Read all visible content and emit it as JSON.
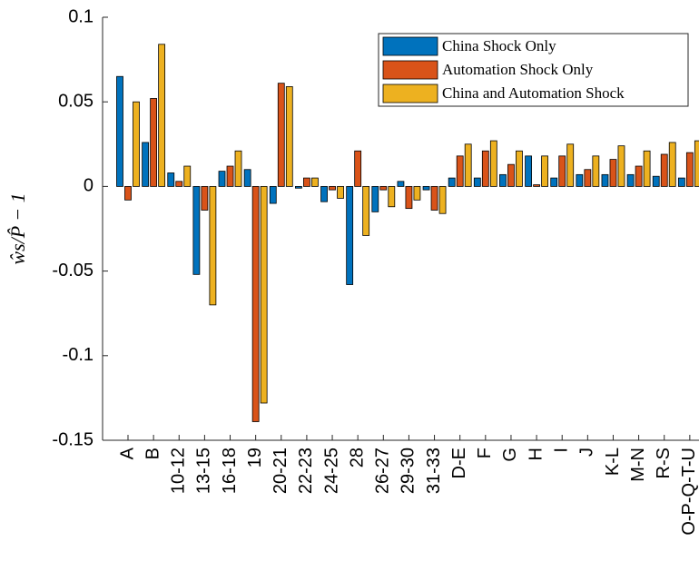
{
  "chart_data": {
    "type": "bar",
    "y_label": "ŵs/P̂ − 1",
    "categories": [
      "A",
      "B",
      "10-12",
      "13-15",
      "16-18",
      "19",
      "20-21",
      "22-23",
      "24-25",
      "28",
      "26-27",
      "29-30",
      "31-33",
      "D-E",
      "F",
      "G",
      "H",
      "I",
      "J",
      "K-L",
      "M-N",
      "R-S",
      "O-P-Q-T-U"
    ],
    "series": [
      {
        "name": "China Shock Only",
        "color": "#0072BD",
        "values": [
          0.065,
          0.026,
          0.008,
          -0.052,
          0.009,
          0.01,
          -0.01,
          -0.001,
          -0.009,
          -0.058,
          -0.015,
          0.003,
          -0.002,
          0.005,
          0.005,
          0.007,
          0.018,
          0.005,
          0.007,
          0.007,
          0.007,
          0.006,
          0.005
        ]
      },
      {
        "name": "Automation Shock Only",
        "color": "#D95319",
        "values": [
          -0.008,
          0.052,
          0.003,
          -0.014,
          0.012,
          -0.139,
          0.061,
          0.005,
          -0.002,
          0.021,
          -0.002,
          -0.013,
          -0.014,
          0.018,
          0.021,
          0.013,
          0.001,
          0.018,
          0.01,
          0.016,
          0.012,
          0.019,
          0.02
        ]
      },
      {
        "name": "China and Automation Shock",
        "color": "#EDB120",
        "values": [
          0.05,
          0.084,
          0.012,
          -0.07,
          0.021,
          -0.128,
          0.059,
          0.005,
          -0.007,
          -0.029,
          -0.012,
          -0.008,
          -0.016,
          0.025,
          0.027,
          0.021,
          0.018,
          0.025,
          0.018,
          0.024,
          0.021,
          0.026,
          0.027
        ]
      }
    ],
    "ylim": [
      -0.15,
      0.1
    ],
    "yticks": [
      -0.15,
      -0.1,
      -0.05,
      0,
      0.05,
      0.1
    ],
    "legend": "top-right"
  }
}
